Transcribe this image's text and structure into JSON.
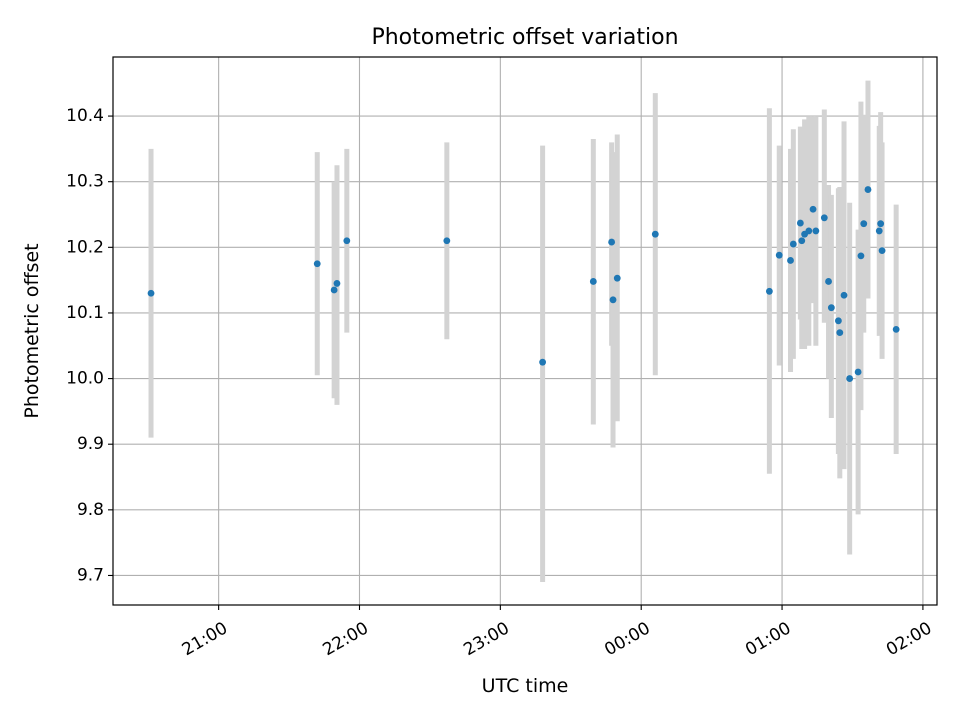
{
  "chart_data": {
    "type": "scatter",
    "title": "Photometric offset variation",
    "xlabel": "UTC time",
    "ylabel": "Photometric offset",
    "grid": true,
    "x_unit": "hours relative to 00:00 UTC",
    "xlim": [
      -3.75,
      2.1
    ],
    "ylim": [
      9.655,
      10.49
    ],
    "x_ticks": [
      {
        "value": -3,
        "label": "21:00"
      },
      {
        "value": -2,
        "label": "22:00"
      },
      {
        "value": -1,
        "label": "23:00"
      },
      {
        "value": 0,
        "label": "00:00"
      },
      {
        "value": 1,
        "label": "01:00"
      },
      {
        "value": 2,
        "label": "02:00"
      }
    ],
    "y_ticks": [
      {
        "value": 9.7,
        "label": "9.7"
      },
      {
        "value": 9.8,
        "label": "9.8"
      },
      {
        "value": 9.9,
        "label": "9.9"
      },
      {
        "value": 10.0,
        "label": "10.0"
      },
      {
        "value": 10.1,
        "label": "10.1"
      },
      {
        "value": 10.2,
        "label": "10.2"
      },
      {
        "value": 10.3,
        "label": "10.3"
      },
      {
        "value": 10.4,
        "label": "10.4"
      }
    ],
    "colors": {
      "point": "#1f77b4",
      "errorbar": "#d3d3d3",
      "grid": "#b0b0b0",
      "axes": "#000000"
    },
    "points": [
      {
        "x": -3.48,
        "y": 10.13,
        "lo": 9.91,
        "hi": 10.35
      },
      {
        "x": -2.3,
        "y": 10.175,
        "lo": 10.005,
        "hi": 10.345
      },
      {
        "x": -2.18,
        "y": 10.135,
        "lo": 9.97,
        "hi": 10.3
      },
      {
        "x": -2.16,
        "y": 10.145,
        "lo": 9.96,
        "hi": 10.325
      },
      {
        "x": -2.09,
        "y": 10.21,
        "lo": 10.07,
        "hi": 10.35
      },
      {
        "x": -1.38,
        "y": 10.21,
        "lo": 10.06,
        "hi": 10.36
      },
      {
        "x": -0.7,
        "y": 10.025,
        "lo": 9.69,
        "hi": 10.355
      },
      {
        "x": -0.34,
        "y": 10.148,
        "lo": 9.93,
        "hi": 10.365
      },
      {
        "x": -0.21,
        "y": 10.208,
        "lo": 10.05,
        "hi": 10.36
      },
      {
        "x": -0.2,
        "y": 10.12,
        "lo": 9.895,
        "hi": 10.345
      },
      {
        "x": -0.17,
        "y": 10.153,
        "lo": 9.935,
        "hi": 10.372
      },
      {
        "x": 0.1,
        "y": 10.22,
        "lo": 10.005,
        "hi": 10.435
      },
      {
        "x": 0.91,
        "y": 10.133,
        "lo": 9.855,
        "hi": 10.412
      },
      {
        "x": 0.98,
        "y": 10.188,
        "lo": 10.02,
        "hi": 10.355
      },
      {
        "x": 1.06,
        "y": 10.18,
        "lo": 10.01,
        "hi": 10.35
      },
      {
        "x": 1.08,
        "y": 10.205,
        "lo": 10.03,
        "hi": 10.38
      },
      {
        "x": 1.13,
        "y": 10.237,
        "lo": 10.09,
        "hi": 10.384
      },
      {
        "x": 1.14,
        "y": 10.21,
        "lo": 10.045,
        "hi": 10.375
      },
      {
        "x": 1.16,
        "y": 10.22,
        "lo": 10.045,
        "hi": 10.395
      },
      {
        "x": 1.19,
        "y": 10.225,
        "lo": 10.05,
        "hi": 10.4
      },
      {
        "x": 1.22,
        "y": 10.258,
        "lo": 10.115,
        "hi": 10.4
      },
      {
        "x": 1.24,
        "y": 10.225,
        "lo": 10.05,
        "hi": 10.4
      },
      {
        "x": 1.3,
        "y": 10.245,
        "lo": 10.085,
        "hi": 10.41
      },
      {
        "x": 1.33,
        "y": 10.148,
        "lo": 10.0,
        "hi": 10.295
      },
      {
        "x": 1.35,
        "y": 10.108,
        "lo": 9.94,
        "hi": 10.28
      },
      {
        "x": 1.4,
        "y": 10.088,
        "lo": 9.885,
        "hi": 10.29
      },
      {
        "x": 1.41,
        "y": 10.07,
        "lo": 9.848,
        "hi": 10.292
      },
      {
        "x": 1.44,
        "y": 10.127,
        "lo": 9.862,
        "hi": 10.392
      },
      {
        "x": 1.48,
        "y": 10.0,
        "lo": 9.732,
        "hi": 10.268
      },
      {
        "x": 1.54,
        "y": 10.01,
        "lo": 9.793,
        "hi": 10.227
      },
      {
        "x": 1.56,
        "y": 10.187,
        "lo": 9.952,
        "hi": 10.422
      },
      {
        "x": 1.58,
        "y": 10.236,
        "lo": 10.07,
        "hi": 10.402
      },
      {
        "x": 1.61,
        "y": 10.288,
        "lo": 10.122,
        "hi": 10.454
      },
      {
        "x": 1.69,
        "y": 10.225,
        "lo": 10.065,
        "hi": 10.385
      },
      {
        "x": 1.7,
        "y": 10.236,
        "lo": 10.066,
        "hi": 10.406
      },
      {
        "x": 1.71,
        "y": 10.195,
        "lo": 10.03,
        "hi": 10.36
      },
      {
        "x": 1.81,
        "y": 10.075,
        "lo": 9.885,
        "hi": 10.265
      }
    ]
  }
}
